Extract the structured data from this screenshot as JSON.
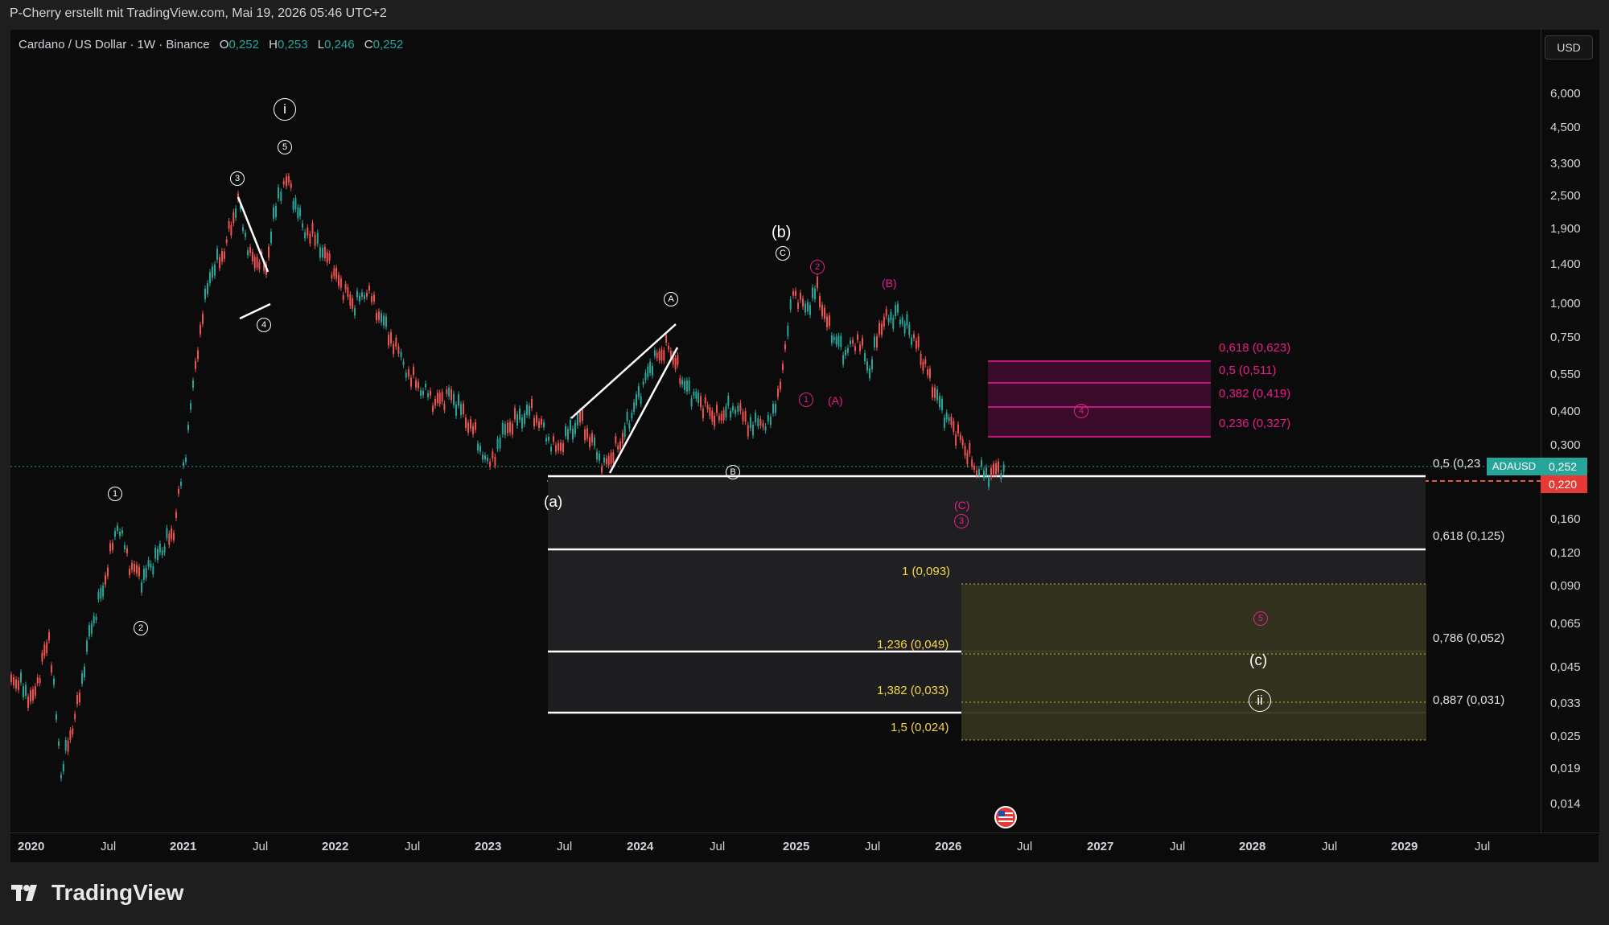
{
  "header": {
    "attribution": "P-Cherry erstellt mit TradingView.com, Mai 19, 2026 05:46 UTC+2"
  },
  "legend": {
    "symbol": "Cardano / US Dollar · 1W · Binance",
    "o_label": "O",
    "o_value": "0,252",
    "h_label": "H",
    "h_value": "0,253",
    "l_label": "L",
    "l_value": "0,246",
    "c_label": "C",
    "c_value": "0,252"
  },
  "price_axis": {
    "currency_button": "USD",
    "ticks": [
      "6,000",
      "4,500",
      "3,300",
      "2,500",
      "1,900",
      "1,400",
      "1,000",
      "0,750",
      "0,550",
      "0,400",
      "0,300",
      "0,160",
      "0,120",
      "0,090",
      "0,065",
      "0,045",
      "0,033",
      "0,025",
      "0,019",
      "0,014"
    ],
    "current_price_tag": "0,252",
    "symbol_tag": "ADAUSD",
    "red_line_tag": "0,220"
  },
  "time_axis": {
    "labels": [
      "2020",
      "Jul",
      "2021",
      "Jul",
      "2022",
      "Jul",
      "2023",
      "Jul",
      "2024",
      "Jul",
      "2025",
      "Jul",
      "2026",
      "Jul",
      "2027",
      "Jul",
      "2028",
      "Jul",
      "2029",
      "Jul"
    ]
  },
  "wave_labels": {
    "big_i": "i",
    "big_ii": "ii",
    "w5_top": "5",
    "w3": "3",
    "w4": "4",
    "w1": "1",
    "w2": "2",
    "a_paren": "(a)",
    "b_paren": "(b)",
    "c_paren": "(c)",
    "A_circ": "A",
    "B_circ": "B",
    "C_circ": "C",
    "pink_1": "1",
    "pink_2": "2",
    "pink_3": "3",
    "pink_4": "4",
    "pink_5": "5",
    "pink_A": "(A)",
    "pink_B": "(B)",
    "pink_C": "(C)"
  },
  "fib_pink": [
    "0,618 (0,623)",
    "0,5 (0,511)",
    "0,382 (0,419)",
    "0,236 (0,327)"
  ],
  "fib_white": [
    "0,5 (0,23",
    "0,618 (0,125)",
    "0,786 (0,052)",
    "0,887 (0,031)"
  ],
  "fib_yellow": [
    "1 (0,093)",
    "1,236 (0,049)",
    "1,382 (0,033)",
    "1,5 (0,024)"
  ],
  "brand": {
    "name": "TradingView"
  },
  "colors": {
    "up": "#26a69a",
    "down": "#ef5350",
    "pink": "#e91e8c",
    "yellow": "#f5d64a",
    "background": "#0b0b0b"
  }
}
